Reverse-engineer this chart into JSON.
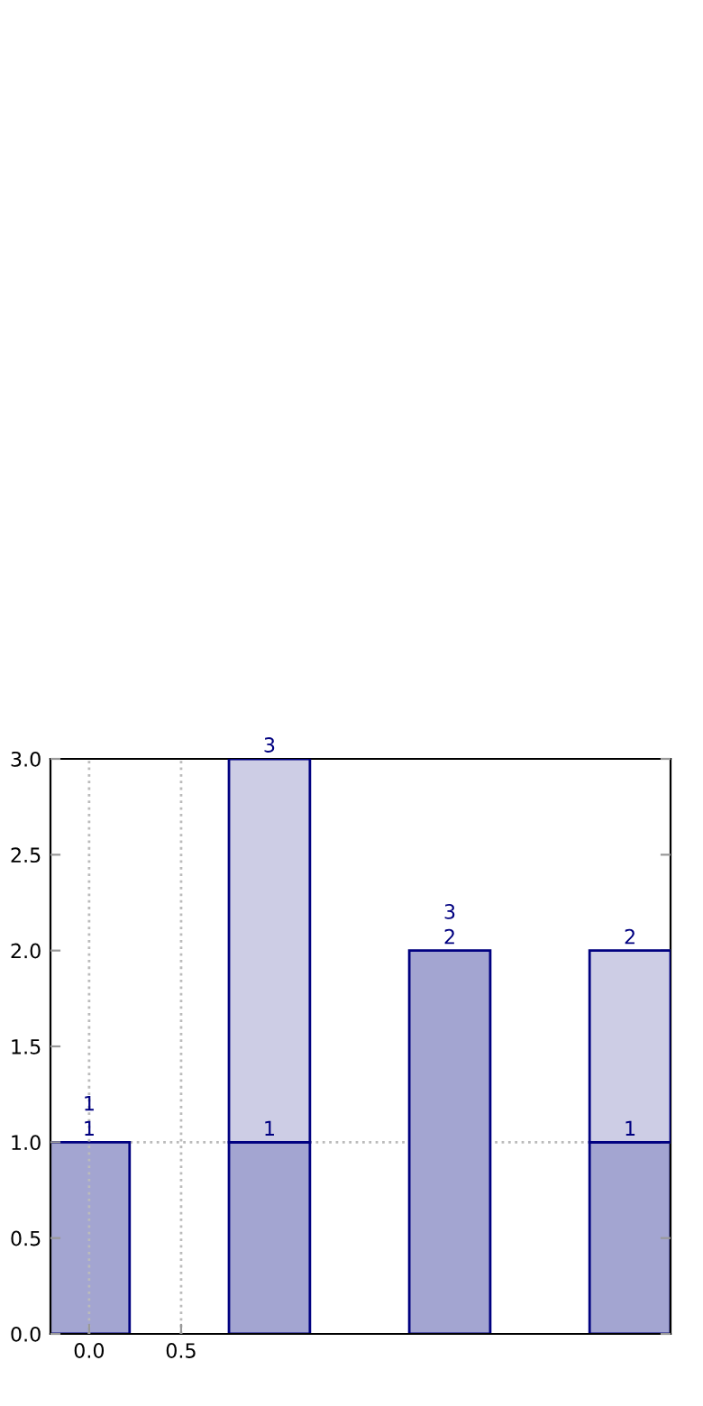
{
  "chart_data": {
    "type": "bar",
    "stacked": true,
    "x": [
      0,
      0.98,
      1.96,
      2.94
    ],
    "series": [
      {
        "color": "#a3a5d1",
        "values": [
          1,
          1,
          2,
          1
        ]
      },
      {
        "color": "#cdcde5",
        "values": [
          null,
          2,
          null,
          1
        ]
      }
    ],
    "totals": [
      "1",
      "3",
      "2",
      "2"
    ],
    "annotations": [
      {
        "text": "1",
        "x": 0,
        "y": 1
      },
      {
        "text": "1",
        "x": 0.98,
        "y": 1
      },
      {
        "text": "3",
        "x": 1.96,
        "y": 2
      },
      {
        "text": "1",
        "x": 2.94,
        "y": 1
      }
    ],
    "xlim": [
      -0.21,
      3.16
    ],
    "ylim": [
      0,
      3
    ],
    "xticks": [
      {
        "value": 0,
        "label": "0.0"
      },
      {
        "value": 0.5,
        "label": "0.5"
      }
    ],
    "yticks": [
      {
        "value": 0,
        "label": "0.0"
      },
      {
        "value": 0.5,
        "label": "0.5"
      },
      {
        "value": 1,
        "label": "1.0"
      },
      {
        "value": 1.5,
        "label": "1.5"
      },
      {
        "value": 2,
        "label": "2.0"
      },
      {
        "value": 2.5,
        "label": "2.5"
      },
      {
        "value": 3,
        "label": "3.0"
      }
    ],
    "grid": "x",
    "ref_lines": [
      {
        "axis": "y",
        "value": 1,
        "color": "#bbbbbb",
        "line_style": "dotted"
      }
    ]
  }
}
